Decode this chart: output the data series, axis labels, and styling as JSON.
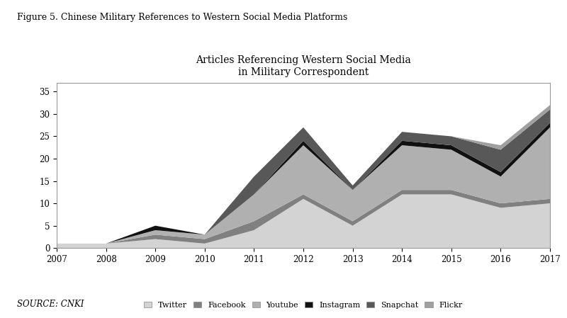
{
  "years": [
    2007,
    2008,
    2009,
    2010,
    2011,
    2012,
    2013,
    2014,
    2015,
    2016,
    2017
  ],
  "series": {
    "Twitter": [
      1,
      1,
      2,
      1,
      4,
      11,
      5,
      12,
      12,
      9,
      10
    ],
    "Facebook": [
      0,
      0,
      1,
      1,
      2,
      1,
      1,
      1,
      1,
      1,
      1
    ],
    "Youtube": [
      0,
      0,
      1,
      1,
      6,
      11,
      7,
      10,
      9,
      6,
      16
    ],
    "Instagram": [
      0,
      0,
      1,
      0,
      0,
      1,
      0,
      1,
      1,
      1,
      1
    ],
    "Snapchat": [
      0,
      0,
      0,
      0,
      4,
      3,
      1,
      2,
      2,
      5,
      3
    ],
    "Flickr": [
      0,
      0,
      0,
      0,
      0,
      0,
      0,
      0,
      0,
      1,
      1
    ]
  },
  "colors": {
    "Twitter": "#d3d3d3",
    "Facebook": "#808080",
    "Youtube": "#b0b0b0",
    "Instagram": "#111111",
    "Snapchat": "#585858",
    "Flickr": "#a0a0a0"
  },
  "figure_title": "Figure 5. Chinese Military References to Western Social Media Platforms",
  "chart_title": "Articles Referencing Western Social Media\nin Military Correspondent",
  "source_text": "SOURCE: CNKI",
  "ylim": [
    0,
    37
  ],
  "yticks": [
    0,
    5,
    10,
    15,
    20,
    25,
    30,
    35
  ],
  "background_color": "#ffffff",
  "plot_bg_color": "#ffffff"
}
